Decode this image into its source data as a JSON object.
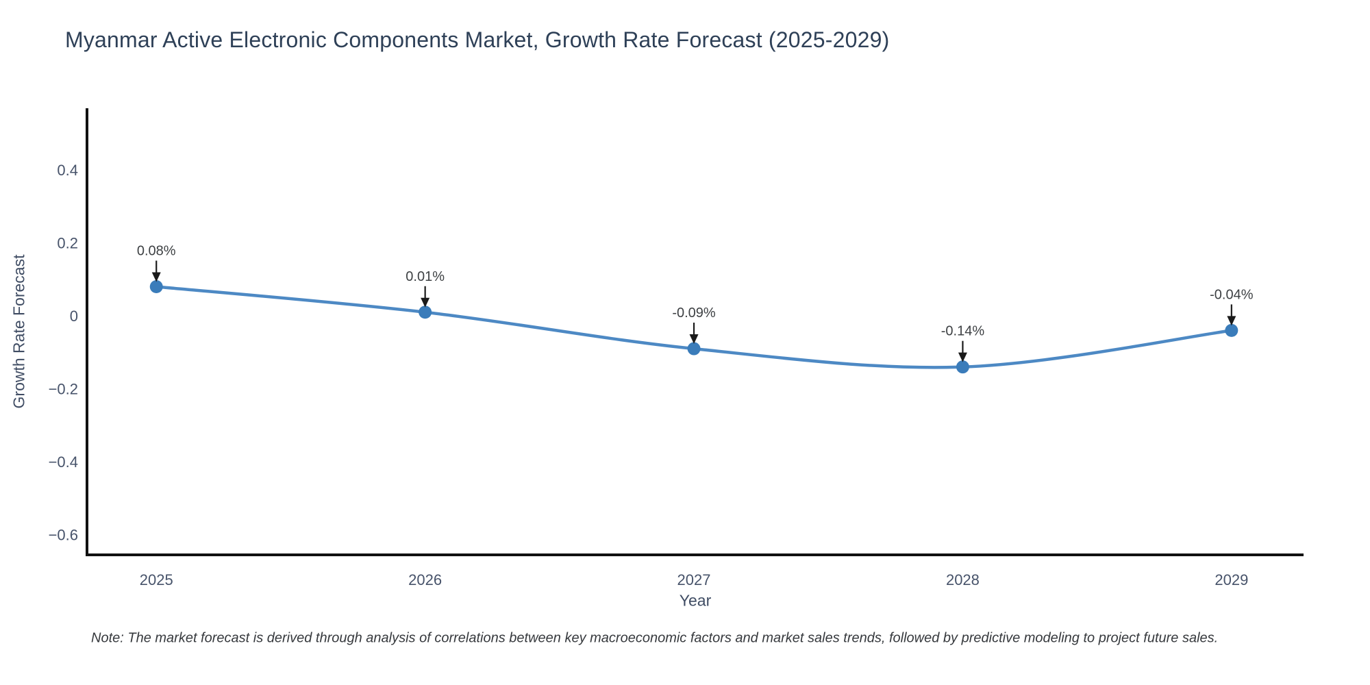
{
  "title": "Myanmar Active Electronic Components Market, Growth Rate Forecast (2025-2029)",
  "note": "Note: The market forecast is derived through analysis of correlations between key macroeconomic factors and market sales trends, followed by predictive modeling to project future sales.",
  "chart_data": {
    "type": "line",
    "title": "Myanmar Active Electronic Components Market, Growth Rate Forecast (2025-2029)",
    "xlabel": "Year",
    "ylabel": "Growth Rate Forecast",
    "x": [
      2025,
      2026,
      2027,
      2028,
      2029
    ],
    "y": [
      0.08,
      0.01,
      -0.09,
      -0.14,
      -0.04
    ],
    "point_labels": [
      "0.08%",
      "0.01%",
      "-0.09%",
      "-0.14%",
      "-0.04%"
    ],
    "x_tick_labels": [
      "2025",
      "2026",
      "2027",
      "2028",
      "2029"
    ],
    "y_ticks": [
      0.4,
      0.2,
      0,
      -0.2,
      -0.4,
      -0.6
    ],
    "y_tick_labels": [
      "0.4",
      "0.2",
      "0",
      "−0.2",
      "−0.4",
      "−0.6"
    ],
    "xlim": [
      2024.742,
      2029.268
    ],
    "ylim": [
      -0.655,
      0.569
    ],
    "grid": false,
    "legend": "none",
    "line_shape": "spline",
    "annotation_arrows": true,
    "colors": {
      "line": "#4d89c4",
      "marker": "#3a7cba",
      "arrow": "#1a1a1a",
      "axis": "#111111",
      "title": "#2e4057",
      "axis_label": "#3f4c63",
      "tick": "#47536a",
      "annotation": "#3d4043",
      "note": "#36393d",
      "background": "#ffffff"
    }
  }
}
